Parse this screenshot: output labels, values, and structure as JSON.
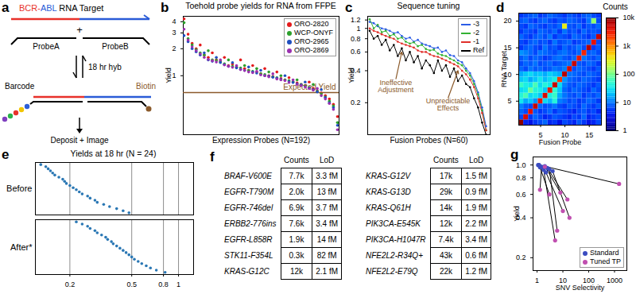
{
  "chart_data": [
    {
      "panel": "b",
      "type": "scatter",
      "title": "Toehold probe yields for RNA from FFPE",
      "x_label": "Expression Probes (N=192)",
      "y_label": "Yield",
      "log": "y",
      "tick_labels": "y",
      "legend": "upper right",
      "xlim": [
        0,
        193
      ],
      "ylim": [
        0.22,
        4.6
      ],
      "yticks": [
        1,
        2,
        3,
        4
      ],
      "x": [
        1,
        6,
        11,
        16,
        21,
        26,
        31,
        36,
        41,
        46,
        51,
        56,
        61,
        66,
        71,
        76,
        81,
        86,
        91,
        96,
        101,
        106,
        111,
        116,
        121,
        126,
        131,
        136,
        141,
        146,
        151,
        156,
        161,
        166,
        171,
        176,
        181,
        186,
        191
      ],
      "series": [
        {
          "name": "ORO-2820",
          "color": "#e41a1c",
          "values": [
            4.3,
            2.9,
            2.3,
            2.0,
            2.2,
            1.7,
            1.6,
            1.8,
            1.5,
            1.45,
            1.6,
            1.3,
            1.35,
            1.25,
            1.5,
            1.2,
            1.15,
            1.3,
            1.1,
            1.05,
            1.2,
            1.0,
            0.98,
            1.1,
            0.93,
            0.9,
            0.95,
            0.86,
            0.83,
            0.8,
            0.78,
            0.85,
            0.72,
            0.68,
            0.64,
            0.6,
            0.55,
            0.48,
            0.35
          ]
        },
        {
          "name": "WCP-ONYF",
          "color": "#2ca02c",
          "values": [
            3.9,
            2.6,
            2.2,
            1.95,
            1.8,
            1.7,
            1.9,
            1.5,
            1.48,
            1.42,
            1.36,
            1.5,
            1.27,
            1.24,
            1.22,
            1.3,
            1.14,
            1.12,
            1.2,
            1.05,
            1.03,
            1.1,
            0.97,
            0.95,
            1.0,
            0.9,
            0.88,
            0.85,
            0.9,
            0.8,
            0.77,
            0.74,
            0.8,
            0.67,
            0.63,
            0.58,
            0.52,
            0.46,
            0.3
          ]
        },
        {
          "name": "ORO-2965",
          "color": "#1f4fbf",
          "values": [
            2.8,
            2.4,
            2.0,
            1.85,
            1.7,
            1.8,
            1.5,
            1.45,
            1.6,
            1.4,
            1.33,
            1.28,
            1.4,
            1.22,
            1.18,
            1.15,
            1.25,
            1.1,
            1.07,
            1.15,
            1.0,
            0.99,
            0.96,
            0.94,
            0.91,
            1.0,
            0.86,
            0.84,
            0.81,
            0.79,
            0.85,
            0.73,
            0.7,
            0.66,
            0.7,
            0.57,
            0.5,
            0.44,
            0.28
          ]
        },
        {
          "name": "ORO-2869",
          "color": "#9b30b0",
          "values": [
            3.3,
            2.5,
            2.1,
            1.9,
            1.75,
            1.6,
            1.52,
            1.47,
            1.42,
            1.5,
            1.32,
            1.27,
            1.24,
            1.3,
            1.17,
            1.14,
            1.1,
            1.08,
            1.12,
            1.02,
            1.0,
            0.97,
            1.05,
            0.92,
            0.9,
            0.88,
            0.84,
            0.9,
            0.8,
            0.78,
            0.75,
            0.72,
            0.69,
            0.72,
            0.6,
            0.55,
            0.49,
            0.42,
            0.25
          ]
        }
      ],
      "reference_line": {
        "value": 0.65,
        "label": "Expected Yield",
        "color": "#8b5a2b"
      }
    },
    {
      "panel": "c",
      "type": "line",
      "title": "Sequence tuning",
      "x_label": "Fusion Probes (N=60)",
      "y_label": "Yield",
      "log": "y",
      "tick_labels": "y",
      "legend": "upper right",
      "marker": "circle",
      "xlim": [
        0,
        61
      ],
      "ylim": [
        0.1,
        1.3
      ],
      "yticks": [
        0.2,
        0.4,
        0.6,
        0.8,
        1,
        1.2
      ],
      "x": [
        1,
        3,
        5,
        7,
        9,
        11,
        13,
        15,
        17,
        19,
        21,
        23,
        25,
        27,
        29,
        31,
        33,
        35,
        37,
        39,
        41,
        43,
        45,
        47,
        49,
        51,
        53,
        55,
        57,
        59
      ],
      "series": [
        {
          "name": "-3",
          "color": "#2b5ce6",
          "values": [
            1.15,
            1.12,
            1.05,
            1.0,
            0.98,
            0.95,
            0.9,
            0.92,
            0.85,
            0.8,
            0.82,
            0.75,
            0.78,
            0.72,
            0.7,
            0.68,
            0.65,
            0.66,
            0.6,
            0.62,
            0.56,
            0.55,
            0.5,
            0.48,
            0.42,
            0.38,
            0.32,
            0.25,
            0.18,
            0.12
          ]
        },
        {
          "name": "-2",
          "color": "#33b233",
          "values": [
            1.22,
            1.0,
            1.08,
            0.92,
            0.95,
            0.85,
            0.88,
            0.8,
            0.82,
            0.75,
            0.72,
            0.74,
            0.68,
            0.7,
            0.64,
            0.62,
            0.63,
            0.58,
            0.56,
            0.55,
            0.52,
            0.5,
            0.47,
            0.45,
            0.4,
            0.36,
            0.3,
            0.24,
            0.17,
            0.11
          ]
        },
        {
          "name": "-1",
          "color": "#e0302a",
          "values": [
            1.0,
            0.95,
            0.92,
            0.88,
            0.85,
            0.82,
            0.8,
            0.75,
            0.72,
            0.7,
            0.68,
            0.66,
            0.62,
            0.6,
            0.6,
            0.57,
            0.55,
            0.54,
            0.52,
            0.5,
            0.48,
            0.46,
            0.44,
            0.4,
            0.37,
            0.33,
            0.28,
            0.22,
            0.16,
            0.11
          ]
        },
        {
          "name": "Ref",
          "color": "#000000",
          "values": [
            0.95,
            0.8,
            0.85,
            0.7,
            0.78,
            0.62,
            0.7,
            0.55,
            0.65,
            0.5,
            0.6,
            0.48,
            0.55,
            0.42,
            0.5,
            0.45,
            0.38,
            0.5,
            0.4,
            0.45,
            0.35,
            0.42,
            0.32,
            0.36,
            0.3,
            0.28,
            0.22,
            0.18,
            0.13,
            0.1
          ]
        }
      ],
      "annotations": [
        {
          "text": "Ineffective\nAdjustment",
          "x": 14,
          "y": 0.33,
          "arrow_to": [
            17,
            0.6
          ],
          "color": "#8b5a2b"
        },
        {
          "text": "Unpredictable\nEffects",
          "x": 40,
          "y": 0.22,
          "arrow_to": [
            45,
            0.4
          ],
          "color": "#8b5a2b"
        }
      ]
    },
    {
      "panel": "d",
      "type": "heatmap",
      "x_label": "Fusion Probe",
      "y_label": "RNA Target",
      "xlim": [
        0.5,
        17.5
      ],
      "xticks": [
        5,
        10,
        15
      ],
      "ylim": [
        0.5,
        21.5
      ],
      "yticks": [
        5,
        10,
        15,
        20
      ],
      "x": [
        1,
        2,
        3,
        4,
        5,
        6,
        7,
        8,
        9,
        10,
        11,
        12,
        13,
        14,
        15,
        16,
        17
      ],
      "y": [
        1,
        2,
        3,
        4,
        5,
        6,
        7,
        8,
        9,
        10,
        11,
        12,
        13,
        14,
        15,
        16,
        17,
        18,
        19,
        20,
        21
      ],
      "values": [
        [
          9000,
          4,
          3,
          5,
          6,
          8,
          4,
          5,
          3,
          6,
          5,
          4,
          7,
          5,
          3,
          4,
          6
        ],
        [
          6,
          4000,
          5,
          8,
          6,
          4,
          5,
          7,
          6,
          5,
          4,
          6,
          5,
          8,
          4,
          5,
          6
        ],
        [
          8,
          6,
          3500,
          7,
          5,
          6,
          8,
          5,
          7,
          6,
          5,
          4,
          6,
          7,
          5,
          6,
          4
        ],
        [
          10,
          7,
          6,
          5000,
          8,
          6,
          7,
          9,
          6,
          5,
          7,
          6,
          5,
          8,
          6,
          5,
          7
        ],
        [
          30,
          15,
          20,
          12,
          3000,
          25,
          18,
          40,
          10,
          8,
          6,
          7,
          5,
          6,
          8,
          7,
          5
        ],
        [
          40,
          60,
          25,
          30,
          20,
          4000,
          35,
          50,
          15,
          9,
          7,
          6,
          8,
          5,
          7,
          6,
          8
        ],
        [
          25,
          30,
          80,
          40,
          35,
          20,
          3000,
          45,
          20,
          8,
          6,
          8,
          7,
          6,
          5,
          8,
          6
        ],
        [
          50,
          35,
          30,
          60,
          25,
          40,
          30,
          5000,
          25,
          10,
          7,
          6,
          8,
          7,
          6,
          5,
          7
        ],
        [
          20,
          25,
          15,
          20,
          30,
          18,
          25,
          35,
          2000,
          12,
          8,
          7,
          6,
          8,
          7,
          6,
          5
        ],
        [
          15,
          20,
          25,
          18,
          20,
          15,
          22,
          18,
          15,
          6000,
          9,
          8,
          7,
          6,
          8,
          7,
          6
        ],
        [
          8,
          6,
          9,
          7,
          8,
          6,
          7,
          9,
          8,
          10,
          4000,
          6,
          8,
          7,
          6,
          5,
          7
        ],
        [
          6,
          8,
          7,
          9,
          6,
          7,
          8,
          6,
          7,
          8,
          9,
          5000,
          7,
          6,
          8,
          7,
          5
        ],
        [
          7,
          9,
          6,
          8,
          7,
          5,
          6,
          8,
          9,
          7,
          6,
          8,
          3000,
          9,
          7,
          6,
          8
        ],
        [
          12,
          10,
          8,
          6,
          9,
          8,
          7,
          6,
          8,
          9,
          7,
          6,
          8,
          2500,
          7,
          8,
          6
        ],
        [
          5,
          7,
          8,
          6,
          5,
          9,
          6,
          7,
          5,
          8,
          6,
          7,
          9,
          6,
          6000,
          5,
          7
        ],
        [
          6,
          5,
          7,
          8,
          6,
          7,
          5,
          9,
          6,
          7,
          8,
          5,
          6,
          7,
          8,
          3500,
          6
        ],
        [
          8,
          6,
          5,
          7,
          8,
          6,
          9,
          5,
          7,
          6,
          5,
          8,
          7,
          6,
          5,
          7,
          5000
        ],
        [
          5,
          7,
          6,
          5,
          8,
          7,
          6,
          8,
          5,
          9,
          6,
          7,
          5,
          8,
          6,
          7,
          6
        ],
        [
          6,
          5,
          8,
          7,
          6,
          5,
          7,
          6,
          8,
          300,
          7,
          6,
          8,
          5,
          7,
          6,
          8
        ],
        [
          7,
          8,
          6,
          5,
          7,
          8,
          6,
          5,
          7,
          6,
          8,
          7,
          6,
          5,
          9,
          120,
          6
        ],
        [
          5,
          6,
          7,
          8,
          5,
          6,
          8,
          7,
          6,
          5,
          7,
          6,
          5,
          7,
          8,
          6,
          5
        ]
      ],
      "colorbar": {
        "label": "Counts",
        "log": true,
        "range": [
          1,
          10000
        ],
        "ticks": [
          1,
          10,
          100,
          {
            "value": 1000,
            "label": "1k"
          },
          {
            "value": 10000,
            "label": "10k"
          }
        ]
      }
    },
    {
      "panel": "e",
      "type": "scatter",
      "title": "Yields at 18 hr (N = 24)",
      "log": "x",
      "grid": true,
      "color": "#2a77b4",
      "xlim": [
        0.12,
        1.25
      ],
      "xticks": [
        0.2,
        0.5,
        0.8,
        1
      ],
      "series": [
        {
          "name": "Before",
          "values": [
            0.13,
            0.14,
            0.145,
            0.15,
            0.155,
            0.16,
            0.17,
            0.18,
            0.185,
            0.19,
            0.2,
            0.21,
            0.22,
            0.23,
            0.24,
            0.26,
            0.27,
            0.29,
            0.3,
            0.33,
            0.36,
            0.4,
            0.44,
            0.48
          ]
        },
        {
          "name": "After*",
          "values": [
            0.22,
            0.24,
            0.26,
            0.27,
            0.29,
            0.3,
            0.32,
            0.34,
            0.35,
            0.37,
            0.38,
            0.4,
            0.42,
            0.44,
            0.46,
            0.48,
            0.5,
            0.52,
            0.55,
            0.58,
            0.62,
            0.66,
            0.72,
            0.82
          ]
        }
      ]
    },
    {
      "panel": "g",
      "type": "scatter",
      "x_label": "SNV Selectivity",
      "y_label": "Yield",
      "log": true,
      "legend": "lower right",
      "xlim": [
        0.7,
        3000
      ],
      "xticks": [
        1,
        10,
        100,
        1000
      ],
      "ylim": [
        0.16,
        1.15
      ],
      "yticks": [
        0.2,
        0.4,
        0.6,
        0.8,
        {
          "value": 1,
          "label": "1.0"
        }
      ],
      "series": [
        {
          "name": "Standard",
          "color": "#3b4cc0",
          "marker": "circle",
          "x": [
            1.1,
            1.2,
            1.5,
            2,
            2.5,
            3,
            1.8,
            4,
            1.3,
            2.2
          ],
          "values": [
            1,
            1,
            0.97,
            0.98,
            0.95,
            0.93,
            0.92,
            0.9,
            0.96,
            0.88
          ]
        },
        {
          "name": "Tuned TP",
          "color": "#c04fb0",
          "marker": "circle",
          "x": [
            2,
            1500,
            1.3,
            8,
            15,
            6,
            5,
            18,
            3,
            10
          ],
          "values": [
            0.97,
            0.72,
            0.65,
            0.62,
            0.55,
            0.32,
            0.27,
            0.4,
            0.6,
            0.45
          ]
        }
      ]
    }
  ],
  "diagram": {
    "panel": "a",
    "title_parts": [
      {
        "text": "BCR-",
        "color": "#e8312a"
      },
      {
        "text": "ABL",
        "color": "#2a5bd7"
      },
      {
        "text": " RNA Target",
        "color": "#000000"
      }
    ],
    "plus": "+",
    "probe_a": "ProbeA",
    "probe_b": "ProbeB",
    "step": "18 hr hyb",
    "barcode": "Barcode",
    "biotin": "Biotin",
    "result": "Deposit + Image"
  },
  "table": {
    "panel": "f",
    "tables": [
      {
        "header": [
          "Counts",
          "LoD"
        ],
        "rows": [
          [
            "BRAF-V600E",
            "7.7k",
            "3.3 fM"
          ],
          [
            "EGFR-T790M",
            "2.0k",
            "13 fM"
          ],
          [
            "EGFR-746del",
            "6.9k",
            "3.7 fM"
          ],
          [
            "ERBB2-776ins",
            "7.6k",
            "3.4 fM"
          ],
          [
            "EGFR-L858R",
            "1.9k",
            "14 fM"
          ],
          [
            "STK11-F354L",
            "0.3k",
            "82 fM"
          ],
          [
            "KRAS-G12C",
            "12k",
            "2.1 fM"
          ]
        ]
      },
      {
        "header": [
          "Counts",
          "LoD"
        ],
        "rows": [
          [
            "KRAS-G12V",
            "17k",
            "1.5 fM"
          ],
          [
            "KRAS-G13D",
            "29k",
            "0.9 fM"
          ],
          [
            "KRAS-Q61H",
            "14k",
            "1.9 fM"
          ],
          [
            "PIK3CA-E545K",
            "12k",
            "2.2 fM"
          ],
          [
            "PIK3CA-H1047R",
            "7.4k",
            "3.4 fM"
          ],
          [
            "NFE2L2-R34Q+",
            "43k",
            "0.6 fM"
          ],
          [
            "NFE2L2-E79Q",
            "22k",
            "1.2 fM"
          ]
        ]
      }
    ]
  }
}
